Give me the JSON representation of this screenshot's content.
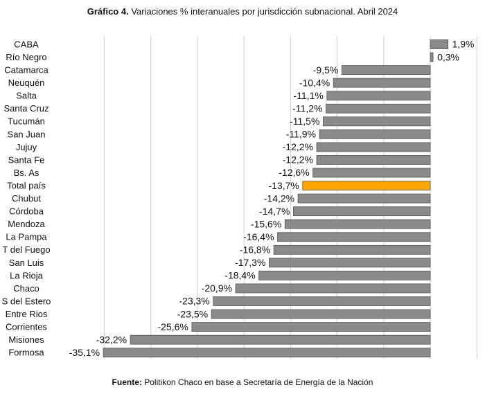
{
  "chart_data": {
    "type": "hbar",
    "title_label": "Gráfico 4.",
    "title": "Variaciones % interanuales por jurisdicción subnacional. Abril 2024",
    "source_label": "Fuente:",
    "source": "Politikon Chaco en base a Secretaría de Energía de la Nación",
    "categories": [
      "CABA",
      "Río Negro",
      "Catamarca",
      "Neuquén",
      "Salta",
      "Santa Cruz",
      "Tucumán",
      "San Juan",
      "Jujuy",
      "Santa Fe",
      "Bs. As",
      "Total país",
      "Chubut",
      "Córdoba",
      "Mendoza",
      "La Pampa",
      "T del Fuego",
      "San Luis",
      "La Rioja",
      "Chaco",
      "S del Estero",
      "Entre Rios",
      "Corrientes",
      "Misiones",
      "Formosa"
    ],
    "values": [
      1.9,
      0.3,
      -9.5,
      -10.4,
      -11.1,
      -11.2,
      -11.5,
      -11.9,
      -12.2,
      -12.2,
      -12.6,
      -13.7,
      -14.2,
      -14.7,
      -15.6,
      -16.4,
      -16.8,
      -17.3,
      -18.4,
      -20.9,
      -23.3,
      -23.5,
      -25.6,
      -32.2,
      -35.1
    ],
    "value_labels": [
      "1,9%",
      "0,3%",
      "-9,5%",
      "-10,4%",
      "-11,1%",
      "-11,2%",
      "-11,5%",
      "-11,9%",
      "-12,2%",
      "-12,2%",
      "-12,6%",
      "-13,7%",
      "-14,2%",
      "-14,7%",
      "-15,6%",
      "-16,4%",
      "-16,8%",
      "-17,3%",
      "-18,4%",
      "-20,9%",
      "-23,3%",
      "-23,5%",
      "-25,6%",
      "-32,2%",
      "-35,1%"
    ],
    "colors": [
      "#8a8a8a",
      "#8a8a8a",
      "#8a8a8a",
      "#8a8a8a",
      "#8a8a8a",
      "#8a8a8a",
      "#8a8a8a",
      "#8a8a8a",
      "#8a8a8a",
      "#8a8a8a",
      "#8a8a8a",
      "#ffa500",
      "#8a8a8a",
      "#8a8a8a",
      "#8a8a8a",
      "#8a8a8a",
      "#8a8a8a",
      "#8a8a8a",
      "#8a8a8a",
      "#8a8a8a",
      "#8a8a8a",
      "#8a8a8a",
      "#8a8a8a",
      "#8a8a8a",
      "#8a8a8a"
    ],
    "xlim": [
      -36,
      5.5
    ],
    "xticks": [
      -35,
      -30,
      -25,
      -20,
      -15,
      -10,
      -5,
      0,
      5
    ],
    "grid": true
  }
}
